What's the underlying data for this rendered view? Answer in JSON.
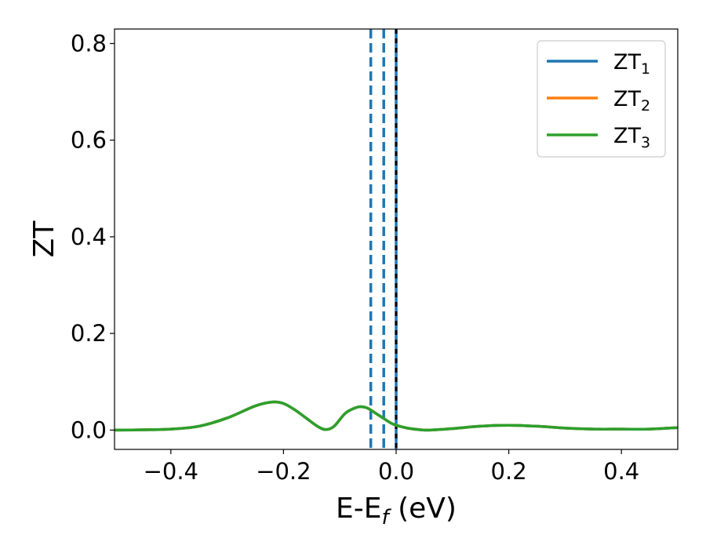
{
  "chart_data": {
    "type": "line",
    "title": "",
    "xlabel": "E-E",
    "xlabel_sub": "f",
    "xlabel_unit": " (eV)",
    "ylabel": "ZT",
    "xlim": [
      -0.5,
      0.5
    ],
    "ylim": [
      -0.04,
      0.83
    ],
    "x_ticks": [
      -0.4,
      -0.2,
      0.0,
      0.2,
      0.4
    ],
    "x_tick_labels": [
      "−0.4",
      "−0.2",
      "0.0",
      "0.2",
      "0.4"
    ],
    "y_ticks": [
      0.0,
      0.2,
      0.4,
      0.6,
      0.8
    ],
    "y_tick_labels": [
      "0.0",
      "0.2",
      "0.4",
      "0.6",
      "0.8"
    ],
    "grid": false,
    "legend_position": "top-right",
    "x": [
      -0.5,
      -0.45,
      -0.4,
      -0.35,
      -0.3,
      -0.25,
      -0.22,
      -0.2,
      -0.18,
      -0.16,
      -0.14,
      -0.125,
      -0.11,
      -0.09,
      -0.07,
      -0.06,
      -0.05,
      -0.03,
      -0.01,
      0.0,
      0.02,
      0.04,
      0.06,
      0.1,
      0.15,
      0.2,
      0.25,
      0.3,
      0.35,
      0.4,
      0.45,
      0.5
    ],
    "series": [
      {
        "name": "ZT",
        "sub": "1",
        "color": "#1f77b4",
        "values": [
          0.0,
          0.0005,
          0.002,
          0.008,
          0.025,
          0.05,
          0.058,
          0.055,
          0.042,
          0.025,
          0.008,
          0.001,
          0.008,
          0.035,
          0.047,
          0.048,
          0.045,
          0.03,
          0.015,
          0.01,
          0.004,
          0.001,
          0.0,
          0.003,
          0.008,
          0.01,
          0.008,
          0.004,
          0.002,
          0.002,
          0.002,
          0.005
        ]
      },
      {
        "name": "ZT",
        "sub": "2",
        "color": "#ff7f0e",
        "values": [
          0.0,
          0.0005,
          0.002,
          0.008,
          0.025,
          0.05,
          0.058,
          0.055,
          0.042,
          0.025,
          0.008,
          0.001,
          0.008,
          0.035,
          0.047,
          0.048,
          0.045,
          0.03,
          0.015,
          0.01,
          0.004,
          0.001,
          0.0,
          0.003,
          0.008,
          0.01,
          0.008,
          0.004,
          0.002,
          0.002,
          0.002,
          0.005
        ]
      },
      {
        "name": "ZT",
        "sub": "3",
        "color": "#2ca02c",
        "values": [
          0.0,
          0.0005,
          0.002,
          0.008,
          0.025,
          0.05,
          0.058,
          0.055,
          0.042,
          0.025,
          0.008,
          0.001,
          0.008,
          0.035,
          0.047,
          0.048,
          0.045,
          0.03,
          0.015,
          0.01,
          0.004,
          0.001,
          0.0,
          0.003,
          0.008,
          0.01,
          0.008,
          0.004,
          0.002,
          0.002,
          0.002,
          0.005
        ]
      }
    ],
    "vlines": [
      {
        "x": -0.045,
        "color": "#1f77b4",
        "style": "dashed"
      },
      {
        "x": -0.022,
        "color": "#1f77b4",
        "style": "dashed"
      },
      {
        "x": 0.0,
        "color": "#1f77b4",
        "style": "solid"
      },
      {
        "x": 0.0,
        "color": "#000000",
        "style": "dotted"
      }
    ]
  }
}
